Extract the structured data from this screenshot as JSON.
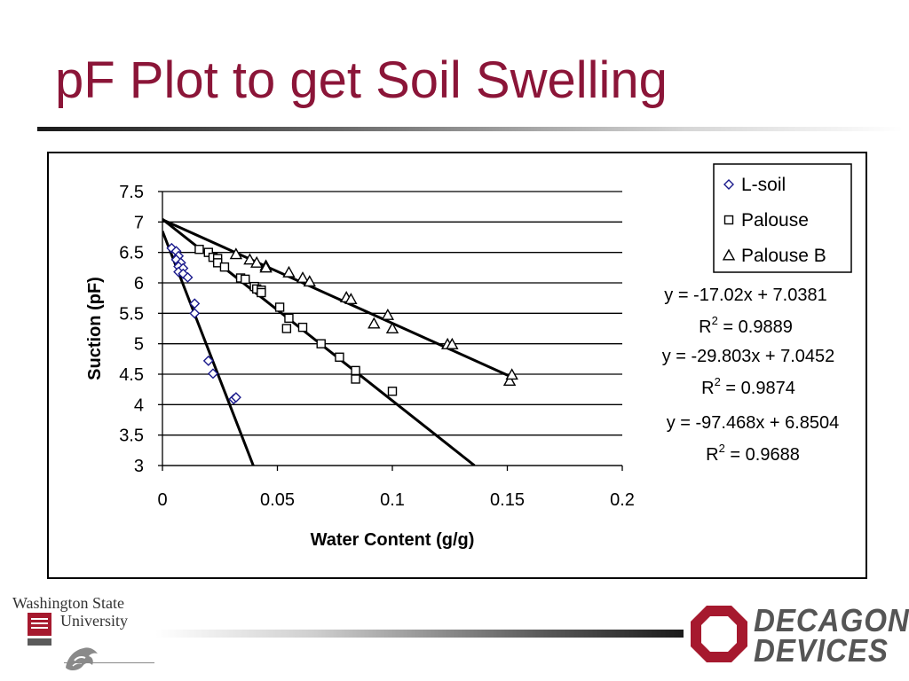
{
  "slide": {
    "title": "pF Plot to get Soil Swelling",
    "title_color": "#8b1538"
  },
  "chart_data": {
    "type": "scatter",
    "title": "",
    "xlabel": "Water Content (g/g)",
    "ylabel": "Suction (pF)",
    "xlim": [
      0,
      0.2
    ],
    "ylim": [
      3,
      7.5
    ],
    "xticks": [
      0,
      0.05,
      0.1,
      0.15,
      0.2
    ],
    "xtick_labels": [
      "0",
      "0.05",
      "0.1",
      "0.15",
      "0.2"
    ],
    "yticks": [
      3,
      3.5,
      4,
      4.5,
      5,
      5.5,
      6,
      6.5,
      7,
      7.5
    ],
    "ytick_labels": [
      "3",
      "3.5",
      "4",
      "4.5",
      "5",
      "5.5",
      "6",
      "6.5",
      "7",
      "7.5"
    ],
    "grid": "horizontal",
    "legend_position": "top-right",
    "series": [
      {
        "name": "L-soil",
        "marker": "diamond",
        "color": "#1a1a8c",
        "points": [
          [
            0.004,
            6.57
          ],
          [
            0.006,
            6.52
          ],
          [
            0.007,
            6.44
          ],
          [
            0.006,
            6.38
          ],
          [
            0.008,
            6.33
          ],
          [
            0.007,
            6.27
          ],
          [
            0.009,
            6.24
          ],
          [
            0.007,
            6.18
          ],
          [
            0.009,
            6.15
          ],
          [
            0.011,
            6.09
          ],
          [
            0.014,
            5.66
          ],
          [
            0.014,
            5.5
          ],
          [
            0.02,
            4.72
          ],
          [
            0.022,
            4.51
          ],
          [
            0.031,
            4.09
          ],
          [
            0.032,
            4.12
          ]
        ]
      },
      {
        "name": "Palouse",
        "marker": "square",
        "color": "#000000",
        "points": [
          [
            0.016,
            6.55
          ],
          [
            0.02,
            6.5
          ],
          [
            0.022,
            6.42
          ],
          [
            0.024,
            6.4
          ],
          [
            0.024,
            6.33
          ],
          [
            0.027,
            6.26
          ],
          [
            0.034,
            6.08
          ],
          [
            0.036,
            6.06
          ],
          [
            0.04,
            5.94
          ],
          [
            0.041,
            5.9
          ],
          [
            0.043,
            5.88
          ],
          [
            0.043,
            5.84
          ],
          [
            0.051,
            5.6
          ],
          [
            0.055,
            5.42
          ],
          [
            0.054,
            5.25
          ],
          [
            0.061,
            5.27
          ],
          [
            0.069,
            5.0
          ],
          [
            0.077,
            4.78
          ],
          [
            0.084,
            4.56
          ],
          [
            0.084,
            4.42
          ],
          [
            0.1,
            4.22
          ]
        ]
      },
      {
        "name": "Palouse B",
        "marker": "triangle",
        "color": "#000000",
        "points": [
          [
            0.032,
            6.47
          ],
          [
            0.038,
            6.38
          ],
          [
            0.041,
            6.33
          ],
          [
            0.045,
            6.28
          ],
          [
            0.045,
            6.25
          ],
          [
            0.055,
            6.17
          ],
          [
            0.061,
            6.08
          ],
          [
            0.064,
            6.02
          ],
          [
            0.08,
            5.76
          ],
          [
            0.082,
            5.73
          ],
          [
            0.092,
            5.33
          ],
          [
            0.098,
            5.47
          ],
          [
            0.1,
            5.25
          ],
          [
            0.124,
            4.99
          ],
          [
            0.126,
            4.99
          ],
          [
            0.151,
            4.39
          ],
          [
            0.152,
            4.49
          ]
        ]
      }
    ],
    "trendlines": [
      {
        "slope": -17.02,
        "intercept": 7.0381,
        "color": "#000000"
      },
      {
        "slope": -29.803,
        "intercept": 7.0452,
        "color": "#000000"
      },
      {
        "slope": -97.468,
        "intercept": 6.8504,
        "color": "#000000"
      }
    ],
    "annotations": [
      {
        "equation": "y = -17.02x + 7.0381",
        "r_label": "R",
        "r_sup": "2",
        "r_value": " = 0.9889"
      },
      {
        "equation": "y = -29.803x + 7.0452",
        "r_label": "R",
        "r_sup": "2",
        "r_value": " = 0.9874"
      },
      {
        "equation": "y = -97.468x + 6.8504",
        "r_label": "R",
        "r_sup": "2",
        "r_value": " = 0.9688"
      }
    ]
  },
  "footer": {
    "wsu_line1": "Washington State",
    "wsu_line2": "University",
    "wsu_color": "#a6192e",
    "decagon_line1": "DECAGON",
    "decagon_line2": "DEVICES",
    "decagon_color": "#a6192e"
  }
}
